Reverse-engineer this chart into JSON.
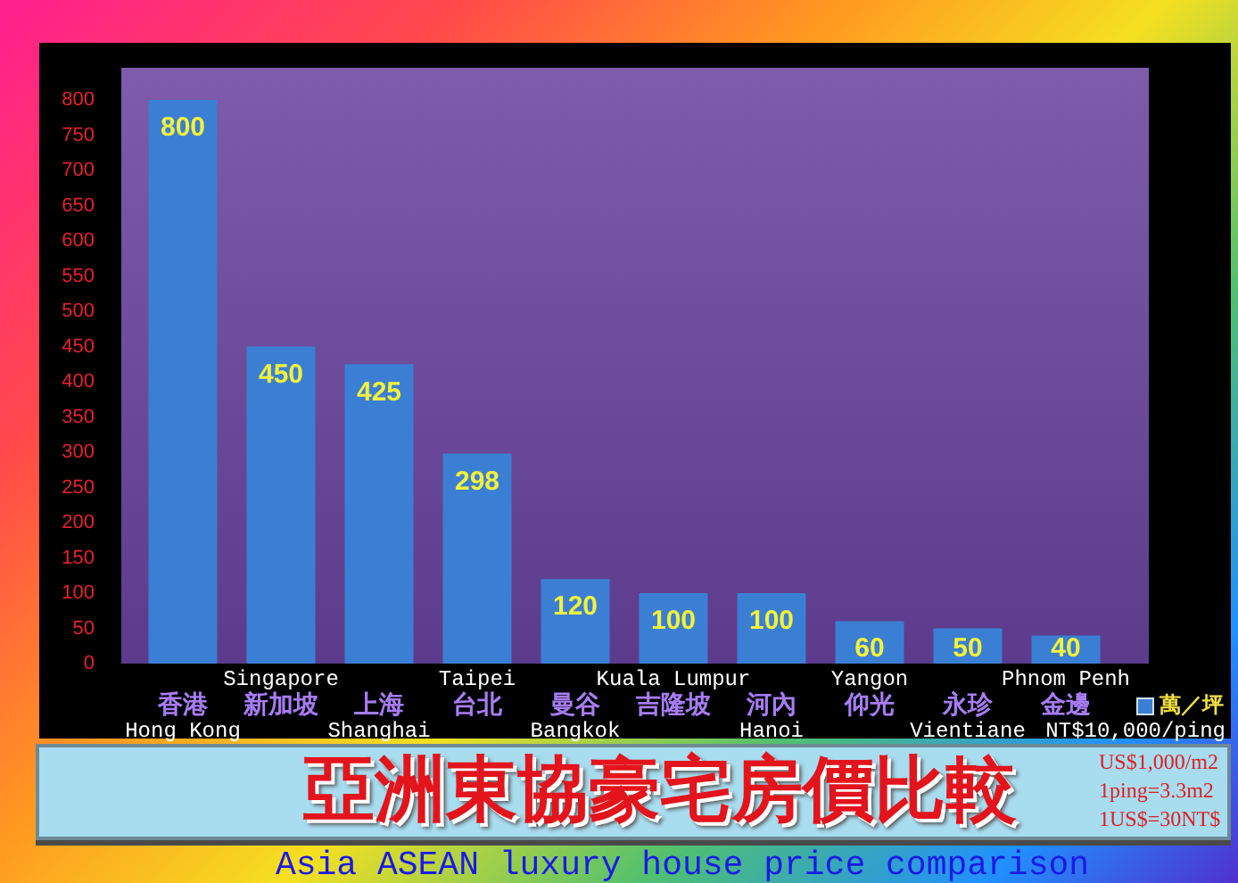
{
  "chart_data": {
    "type": "bar",
    "title": "亞洲東協豪宅房價比較",
    "subtitle": "Asia ASEAN luxury house price comparison",
    "categories": [
      "香港\nHong Kong",
      "新加坡\nSingapore",
      "上海\nShanghai",
      "台北\nTaipei",
      "曼谷\nBangkok",
      "吉隆坡\nKuala Lumpur",
      "河內\nHanoi",
      "仰光\nYangon",
      "永珍\nVientiane",
      "金邊\nPhnom Penh"
    ],
    "series": [
      {
        "name": "萬／坪",
        "color": "#3b7fd4",
        "values": [
          800,
          450,
          425,
          298,
          120,
          100,
          100,
          60,
          50,
          40
        ]
      }
    ],
    "ylim": [
      0,
      800
    ],
    "yticks": [
      0,
      50,
      100,
      150,
      200,
      250,
      300,
      350,
      400,
      450,
      500,
      550,
      600,
      650,
      700,
      750,
      800
    ],
    "grid": false,
    "legend": "bottom right",
    "data_labels": true,
    "annotations": [
      "NT$10,000/ping",
      "US$1,000/m2",
      "1ping=3.3m2",
      "1US$=30NT$"
    ]
  }
}
